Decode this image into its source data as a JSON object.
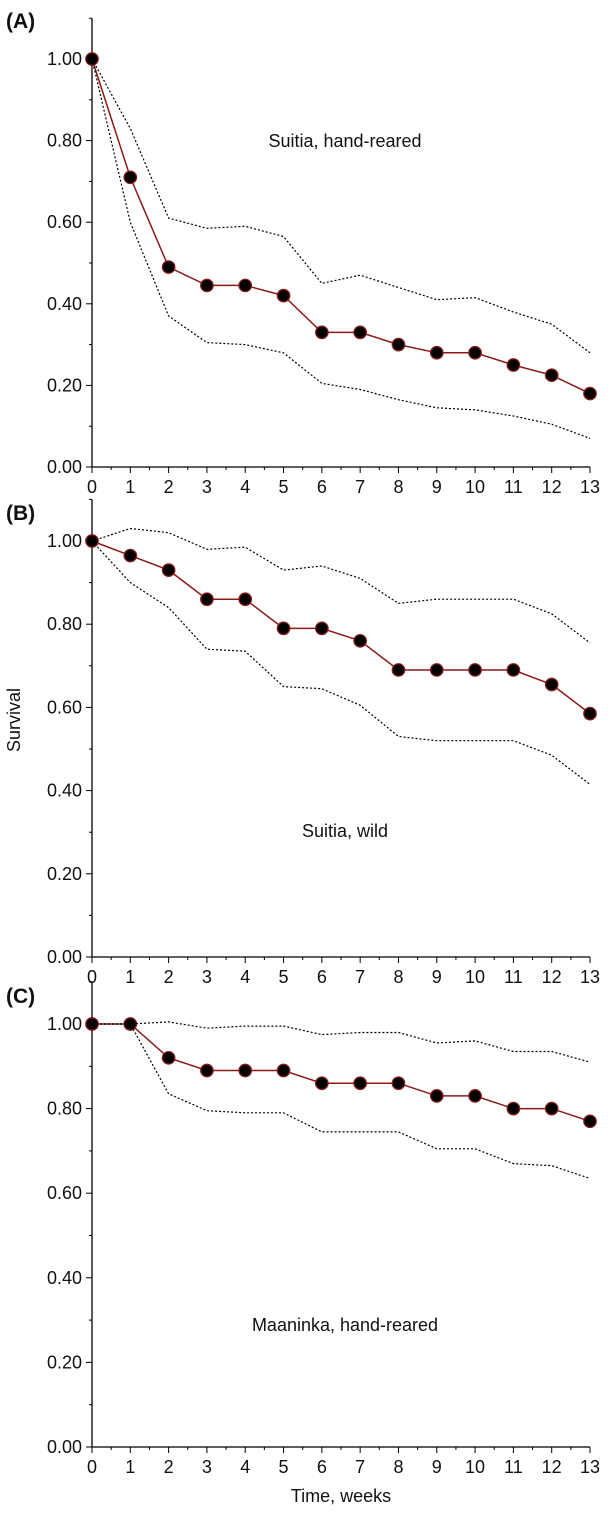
{
  "chart_data": [
    {
      "type": "line",
      "panel_label": "(A)",
      "annotation": "Suitia, hand-reared",
      "x": [
        0,
        1,
        2,
        3,
        4,
        5,
        6,
        7,
        8,
        9,
        10,
        11,
        12,
        13
      ],
      "xlim": [
        0,
        13
      ],
      "ylim": [
        0,
        1.1
      ],
      "x_ticks": [
        "0",
        "1",
        "2",
        "3",
        "4",
        "5",
        "6",
        "7",
        "8",
        "9",
        "10",
        "11",
        "12",
        "13"
      ],
      "y_ticks": [
        "0.00",
        "0.20",
        "0.40",
        "0.60",
        "0.80",
        "1.00"
      ],
      "series": [
        {
          "role": "estimate",
          "color": "#8b1a1a",
          "marker": "circle",
          "values": [
            1.0,
            0.71,
            0.49,
            0.445,
            0.445,
            0.42,
            0.33,
            0.33,
            0.3,
            0.28,
            0.28,
            0.25,
            0.225,
            0.18
          ]
        },
        {
          "role": "upper",
          "style": "dotted",
          "values": [
            1.0,
            0.83,
            0.61,
            0.585,
            0.59,
            0.565,
            0.45,
            0.47,
            0.44,
            0.41,
            0.415,
            0.38,
            0.35,
            0.28
          ]
        },
        {
          "role": "lower",
          "style": "dotted",
          "values": [
            1.0,
            0.6,
            0.37,
            0.305,
            0.3,
            0.28,
            0.205,
            0.19,
            0.165,
            0.145,
            0.14,
            0.125,
            0.105,
            0.07
          ]
        }
      ]
    },
    {
      "type": "line",
      "panel_label": "(B)",
      "annotation": "Suitia, wild",
      "x": [
        0,
        1,
        2,
        3,
        4,
        5,
        6,
        7,
        8,
        9,
        10,
        11,
        12,
        13
      ],
      "xlim": [
        0,
        13
      ],
      "ylim": [
        0,
        1.1
      ],
      "x_ticks": [
        "0",
        "1",
        "2",
        "3",
        "4",
        "5",
        "6",
        "7",
        "8",
        "9",
        "10",
        "11",
        "12",
        "13"
      ],
      "y_ticks": [
        "0.00",
        "0.20",
        "0.40",
        "0.60",
        "0.80",
        "1.00"
      ],
      "series": [
        {
          "role": "estimate",
          "color": "#8b1a1a",
          "marker": "circle",
          "values": [
            1.0,
            0.965,
            0.93,
            0.86,
            0.86,
            0.79,
            0.79,
            0.76,
            0.69,
            0.69,
            0.69,
            0.69,
            0.655,
            0.585
          ]
        },
        {
          "role": "upper",
          "style": "dotted",
          "values": [
            1.0,
            1.03,
            1.02,
            0.98,
            0.985,
            0.93,
            0.94,
            0.91,
            0.85,
            0.86,
            0.86,
            0.86,
            0.825,
            0.755
          ]
        },
        {
          "role": "lower",
          "style": "dotted",
          "values": [
            1.0,
            0.9,
            0.84,
            0.74,
            0.735,
            0.65,
            0.645,
            0.605,
            0.53,
            0.52,
            0.52,
            0.52,
            0.485,
            0.415
          ]
        }
      ]
    },
    {
      "type": "line",
      "panel_label": "(C)",
      "annotation": "Maaninka, hand-reared",
      "x": [
        0,
        1,
        2,
        3,
        4,
        5,
        6,
        7,
        8,
        9,
        10,
        11,
        12,
        13
      ],
      "xlim": [
        0,
        13
      ],
      "ylim": [
        0,
        1.1
      ],
      "x_ticks": [
        "0",
        "1",
        "2",
        "3",
        "4",
        "5",
        "6",
        "7",
        "8",
        "9",
        "10",
        "11",
        "12",
        "13"
      ],
      "y_ticks": [
        "0.00",
        "0.20",
        "0.40",
        "0.60",
        "0.80",
        "1.00"
      ],
      "xlabel": "Time, weeks",
      "series": [
        {
          "role": "estimate",
          "color": "#8b1a1a",
          "marker": "circle",
          "values": [
            1.0,
            1.0,
            0.92,
            0.89,
            0.89,
            0.89,
            0.86,
            0.86,
            0.86,
            0.83,
            0.83,
            0.8,
            0.8,
            0.77
          ]
        },
        {
          "role": "upper",
          "style": "dotted",
          "values": [
            1.0,
            1.0,
            1.005,
            0.99,
            0.995,
            0.995,
            0.975,
            0.98,
            0.98,
            0.955,
            0.96,
            0.935,
            0.935,
            0.91
          ]
        },
        {
          "role": "lower",
          "style": "dotted",
          "values": [
            1.0,
            1.0,
            0.835,
            0.795,
            0.79,
            0.79,
            0.745,
            0.745,
            0.745,
            0.705,
            0.705,
            0.67,
            0.665,
            0.635
          ]
        }
      ]
    }
  ],
  "ylabel": "Survival"
}
